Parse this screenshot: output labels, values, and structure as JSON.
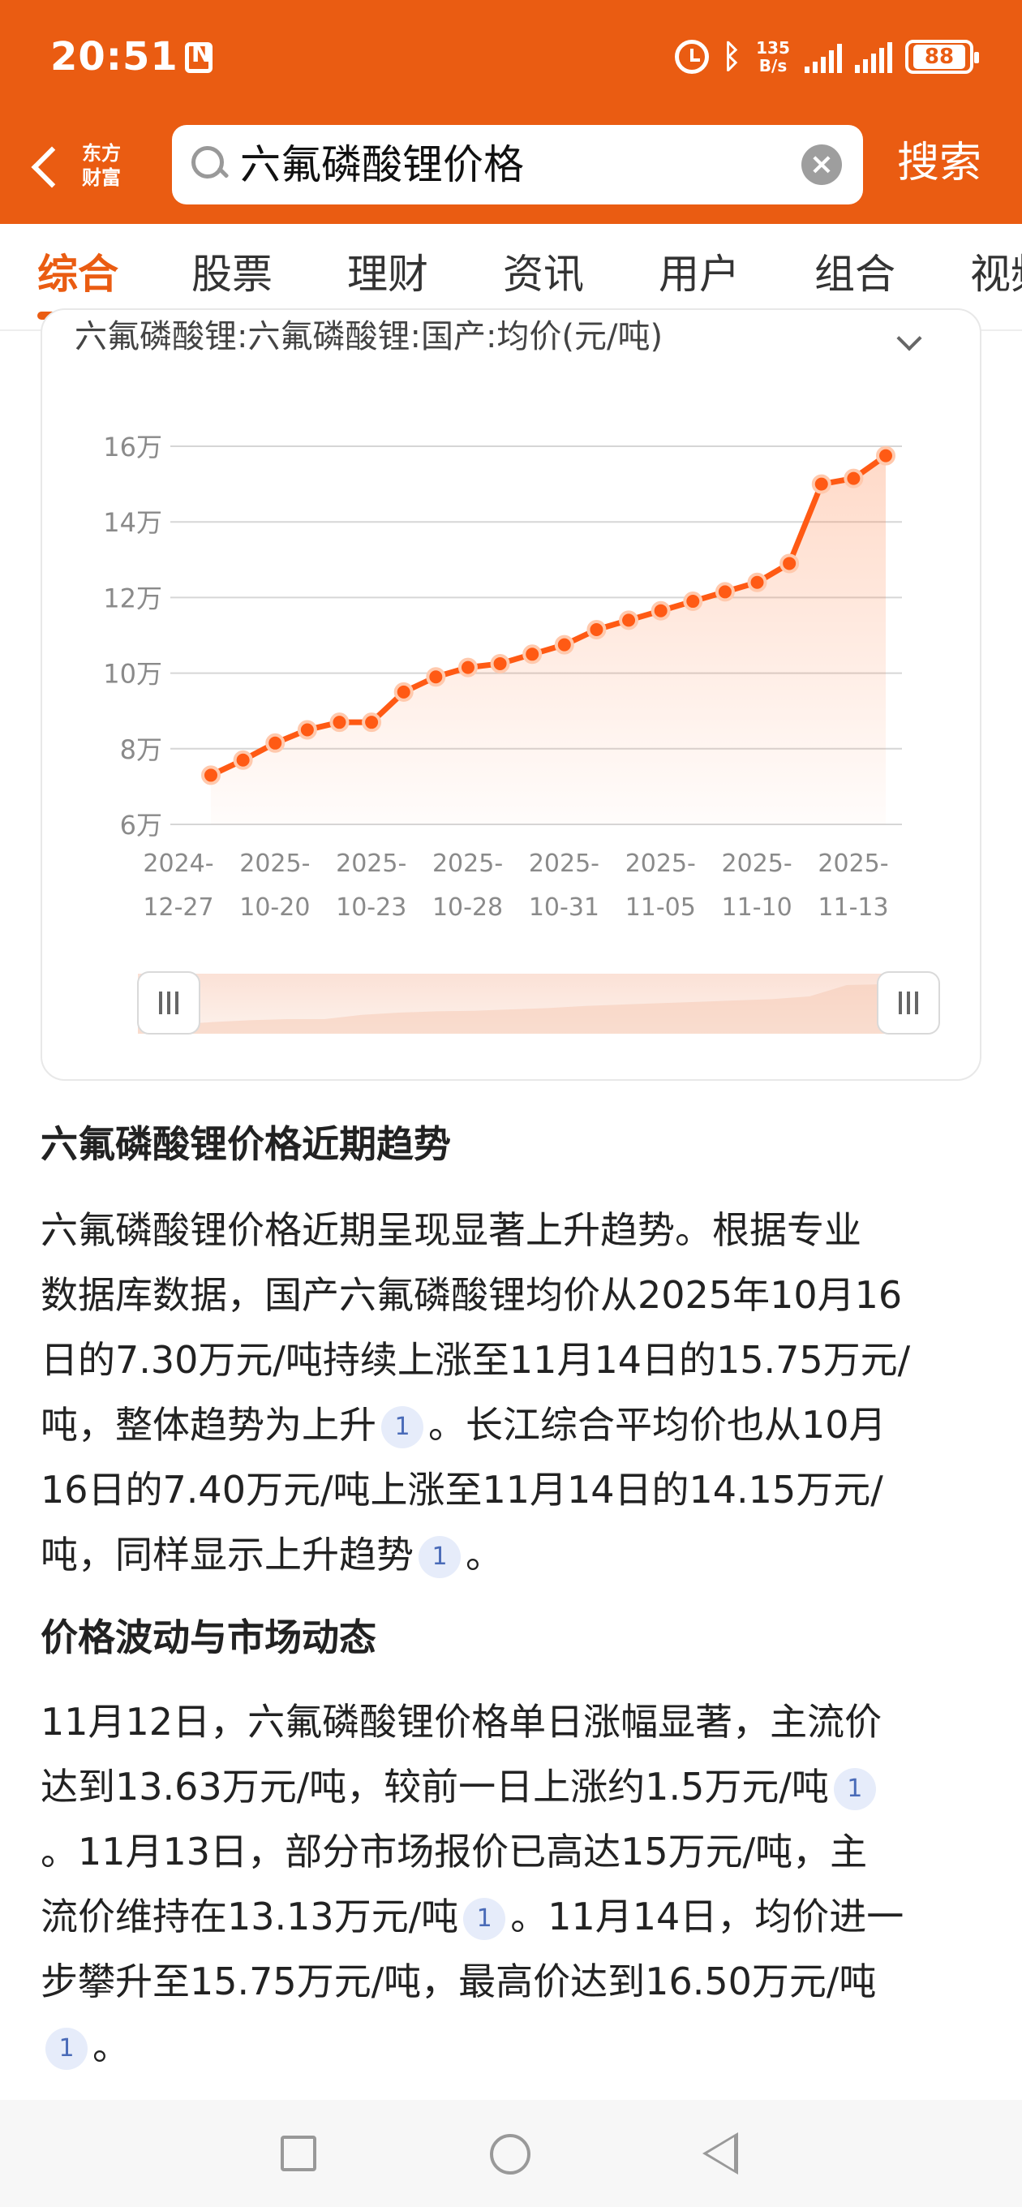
{
  "status_bar": {
    "time": "20:51",
    "net_speed_top": "135",
    "net_speed_bottom": "B/s",
    "battery": "88"
  },
  "header": {
    "logo_line1": "东方",
    "logo_line2": "财富",
    "search_query": "六氟磷酸锂价格",
    "search_button": "搜索"
  },
  "tabs": [
    "综合",
    "股票",
    "理财",
    "资讯",
    "用户",
    "组合",
    "视频"
  ],
  "chart_card": {
    "title": "六氟磷酸锂:六氟磷酸锂:国产:均价(元/吨)"
  },
  "chart_data": {
    "type": "line",
    "title": "六氟磷酸锂:六氟磷酸锂:国产:均价(元/吨)",
    "x_tick_labels": [
      [
        "2024-",
        "12-27"
      ],
      [
        "2025-",
        "10-20"
      ],
      [
        "2025-",
        "10-23"
      ],
      [
        "2025-",
        "10-28"
      ],
      [
        "2025-",
        "10-31"
      ],
      [
        "2025-",
        "11-05"
      ],
      [
        "2025-",
        "11-10"
      ],
      [
        "2025-",
        "11-13"
      ]
    ],
    "y_tick_labels": [
      "6万",
      "8万",
      "10万",
      "12万",
      "14万",
      "16万"
    ],
    "y_ticks": [
      60000,
      80000,
      100000,
      120000,
      140000,
      160000
    ],
    "ylim": [
      60000,
      160000
    ],
    "series": [
      {
        "values": [
          73000,
          77000,
          81500,
          85000,
          87000,
          87000,
          95000,
          99000,
          101500,
          102500,
          105000,
          107500,
          111500,
          114000,
          116500,
          119000,
          121500,
          124000,
          129000,
          150000,
          151500,
          157500
        ]
      }
    ],
    "grid": true,
    "color": "#ff5a14"
  },
  "article": {
    "section1_title": "六氟磷酸锂价格近期趋势",
    "section1_lines": [
      {
        "text": "六氟磷酸锂价格近期呈现显著上升趋势。根据专业"
      },
      {
        "text": "数据库数据，国产六氟磷酸锂均价从2025年10月16"
      },
      {
        "text": "日的7.30万元/吨持续上涨至11月14日的15.75万元/"
      },
      {
        "text": "吨，整体趋势为上升",
        "cite": "1",
        "after": "。长江综合平均价也从10月"
      },
      {
        "text": "16日的7.40万元/吨上涨至11月14日的14.15万元/"
      },
      {
        "text": "吨，同样显示上升趋势",
        "cite": "1",
        "after": "。"
      }
    ],
    "section2_title": "价格波动与市场动态",
    "section2_lines": [
      {
        "text": "11月12日，六氟磷酸锂价格单日涨幅显著，主流价"
      },
      {
        "text": "达到13.63万元/吨，较前一日上涨约1.5万元/吨",
        "cite": "1"
      },
      {
        "text": "。11月13日，部分市场报价已高达15万元/吨，主"
      },
      {
        "text": "流价维持在13.13万元/吨",
        "cite": "1",
        "after": "。11月14日，均价进一"
      },
      {
        "text": "步攀升至15.75万元/吨，最高价达到16.50万元/吨"
      },
      {
        "text": "",
        "cite": "1",
        "after": "。"
      }
    ]
  }
}
